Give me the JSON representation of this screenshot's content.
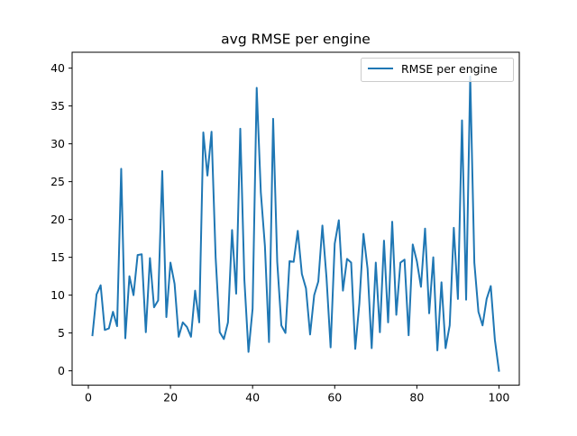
{
  "chart_data": {
    "type": "line",
    "title": "avg RMSE per engine",
    "xlabel": "",
    "ylabel": "",
    "xlim": [
      -3.95,
      104.95
    ],
    "ylim": [
      -1.9,
      42.1
    ],
    "xticks": [
      0,
      20,
      40,
      60,
      80,
      100
    ],
    "yticks": [
      0,
      5,
      10,
      15,
      20,
      25,
      30,
      35,
      40
    ],
    "grid": false,
    "legend": "top-right",
    "series": [
      {
        "name": "RMSE per engine",
        "color": "#1f77b4",
        "x": [
          1,
          2,
          3,
          4,
          5,
          6,
          7,
          8,
          9,
          10,
          11,
          12,
          13,
          14,
          15,
          16,
          17,
          18,
          19,
          20,
          21,
          22,
          23,
          24,
          25,
          26,
          27,
          28,
          29,
          30,
          31,
          32,
          33,
          34,
          35,
          36,
          37,
          38,
          39,
          40,
          41,
          42,
          43,
          44,
          45,
          46,
          47,
          48,
          49,
          50,
          51,
          52,
          53,
          54,
          55,
          56,
          57,
          58,
          59,
          60,
          61,
          62,
          63,
          64,
          65,
          66,
          67,
          68,
          69,
          70,
          71,
          72,
          73,
          74,
          75,
          76,
          77,
          78,
          79,
          80,
          81,
          82,
          83,
          84,
          85,
          86,
          87,
          88,
          89,
          90,
          91,
          92,
          93,
          94,
          95,
          96,
          97,
          98,
          99,
          100
        ],
        "y": [
          4.7,
          10.1,
          11.3,
          5.4,
          5.6,
          7.8,
          5.9,
          26.7,
          4.3,
          12.5,
          10.0,
          15.3,
          15.4,
          5.1,
          14.9,
          8.4,
          9.3,
          26.4,
          7.1,
          14.3,
          11.5,
          4.5,
          6.4,
          5.8,
          4.5,
          10.6,
          6.4,
          31.5,
          25.8,
          31.6,
          15.0,
          5.1,
          4.2,
          6.4,
          18.6,
          10.2,
          32.0,
          12.0,
          2.5,
          8.2,
          37.4,
          23.6,
          16.5,
          3.8,
          33.3,
          14.4,
          6.0,
          5.0,
          14.5,
          14.4,
          18.5,
          12.8,
          10.9,
          4.8,
          10.0,
          11.8,
          19.2,
          12.3,
          3.1,
          16.8,
          19.9,
          10.6,
          14.8,
          14.3,
          2.9,
          8.9,
          18.1,
          13.5,
          3.0,
          14.3,
          5.1,
          17.2,
          6.4,
          19.7,
          7.4,
          14.3,
          14.7,
          4.7,
          16.7,
          14.5,
          11.1,
          18.8,
          7.6,
          15.0,
          2.7,
          11.7,
          3.0,
          6.0,
          18.9,
          9.5,
          33.1,
          9.4,
          38.9,
          14.3,
          7.8,
          6.0,
          9.5,
          11.2,
          4.1,
          0.0
        ]
      }
    ]
  }
}
